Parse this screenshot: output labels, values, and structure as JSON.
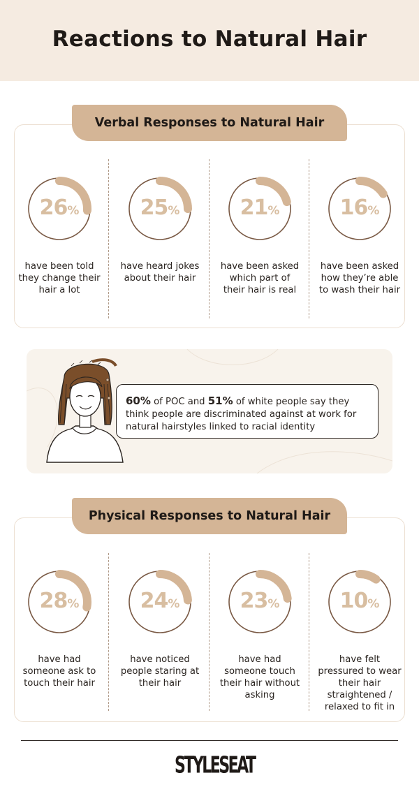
{
  "title": "Reactions to Natural Hair",
  "verbal": {
    "heading": "Verbal Responses to Natural Hair",
    "stats": [
      {
        "value": "26",
        "unit": "%",
        "fraction": 0.26,
        "desc": "have been told they change their hair a lot"
      },
      {
        "value": "25",
        "unit": "%",
        "fraction": 0.25,
        "desc": "have heard jokes about their hair"
      },
      {
        "value": "21",
        "unit": "%",
        "fraction": 0.21,
        "desc": "have been asked which part of their hair is real"
      },
      {
        "value": "16",
        "unit": "%",
        "fraction": 0.16,
        "desc": "have been asked how they’re able to wash their hair"
      }
    ]
  },
  "callout": {
    "stat_a": "60%",
    "text_a": " of POC and ",
    "stat_b": "51%",
    "text_b": " of white people say they think people are discriminated against at work for natural hairstyles linked to racial identity"
  },
  "physical": {
    "heading": "Physical Responses to Natural Hair",
    "stats": [
      {
        "value": "28",
        "unit": "%",
        "fraction": 0.28,
        "desc": "have had someone ask to touch their hair"
      },
      {
        "value": "24",
        "unit": "%",
        "fraction": 0.24,
        "desc": "have noticed people staring at their hair"
      },
      {
        "value": "23",
        "unit": "%",
        "fraction": 0.23,
        "desc": "have had someone touch their hair without asking"
      },
      {
        "value": "10",
        "unit": "%",
        "fraction": 0.1,
        "desc": "have felt pressured to wear their hair straightened / relaxed to fit in"
      }
    ]
  },
  "colors": {
    "header_bg": "#f5ebe1",
    "accent": "#d4b596",
    "ring_outline": "#7a5a45",
    "stat_text": "#d8bea1"
  },
  "logo": "STYLESEAT"
}
